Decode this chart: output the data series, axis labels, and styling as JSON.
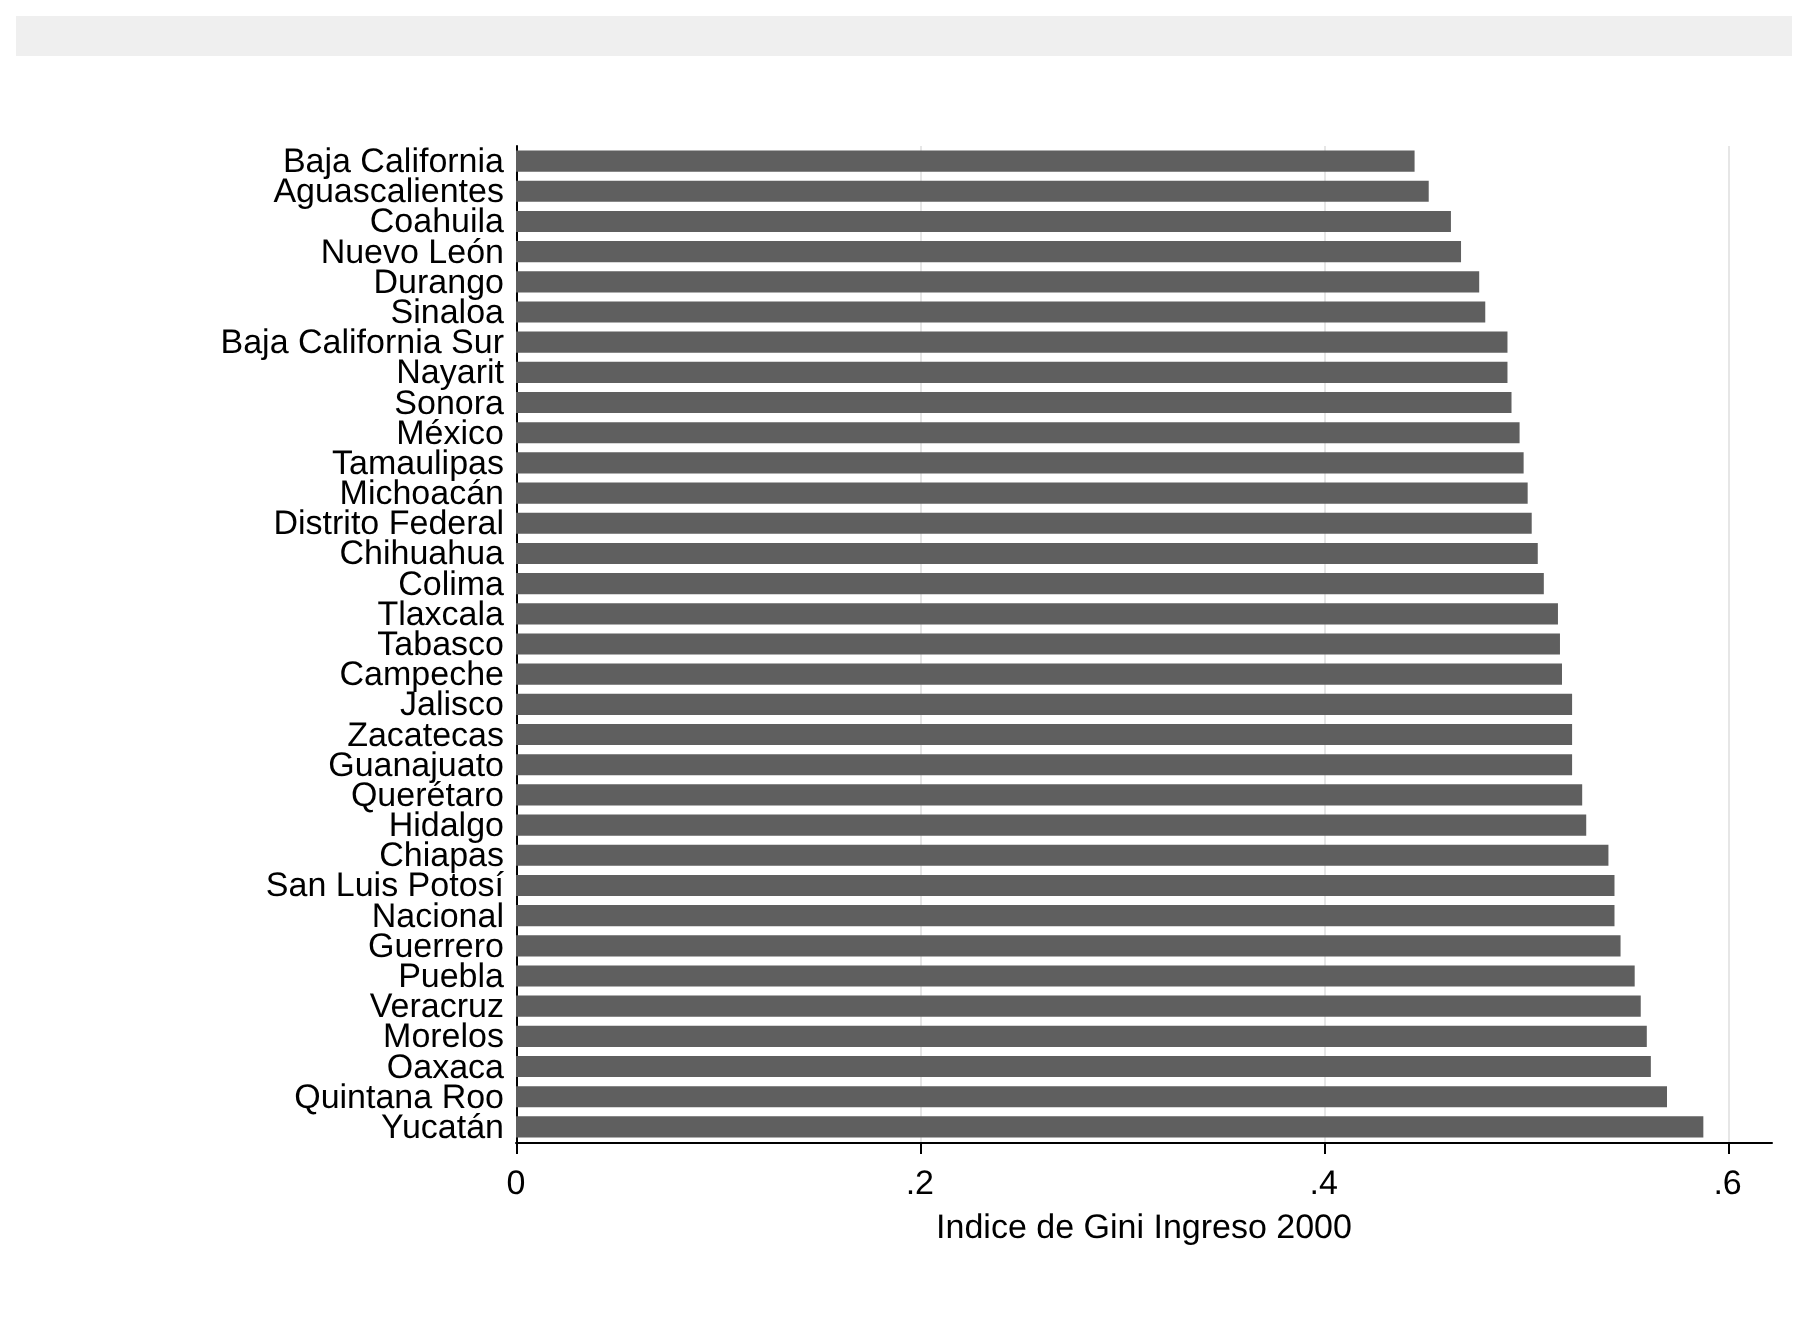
{
  "chart_data": {
    "type": "bar",
    "orientation": "horizontal",
    "xlabel": "Indice de Gini Ingreso 2000",
    "categories": [
      "Baja California",
      "Aguascalientes",
      "Coahuila",
      "Nuevo León",
      "Durango",
      "Sinaloa",
      "Baja California Sur",
      "Nayarit",
      "Sonora",
      "México",
      "Tamaulipas",
      "Michoacán",
      "Distrito Federal",
      "Chihuahua",
      "Colima",
      "Tlaxcala",
      "Tabasco",
      "Campeche",
      "Jalisco",
      "Zacatecas",
      "Guanajuato",
      "Querétaro",
      "Hidalgo",
      "Chiapas",
      "San Luis Potosí",
      "Nacional",
      "Guerrero",
      "Puebla",
      "Veracruz",
      "Morelos",
      "Oaxaca",
      "Quintana Roo",
      "Yucatán"
    ],
    "values": [
      0.445,
      0.452,
      0.463,
      0.468,
      0.477,
      0.48,
      0.491,
      0.491,
      0.493,
      0.497,
      0.499,
      0.501,
      0.503,
      0.506,
      0.509,
      0.516,
      0.517,
      0.518,
      0.523,
      0.523,
      0.523,
      0.528,
      0.53,
      0.541,
      0.544,
      0.544,
      0.547,
      0.554,
      0.557,
      0.56,
      0.562,
      0.57,
      0.588
    ],
    "color": "#5f5f5f",
    "xlim": [
      0,
      0.622
    ],
    "xticks": [
      0,
      {
        "value": 0.2,
        "label": ".2"
      },
      {
        "value": 0.4,
        "label": ".4"
      },
      {
        "value": 0.6,
        "label": ".6"
      }
    ],
    "grid": "x"
  }
}
